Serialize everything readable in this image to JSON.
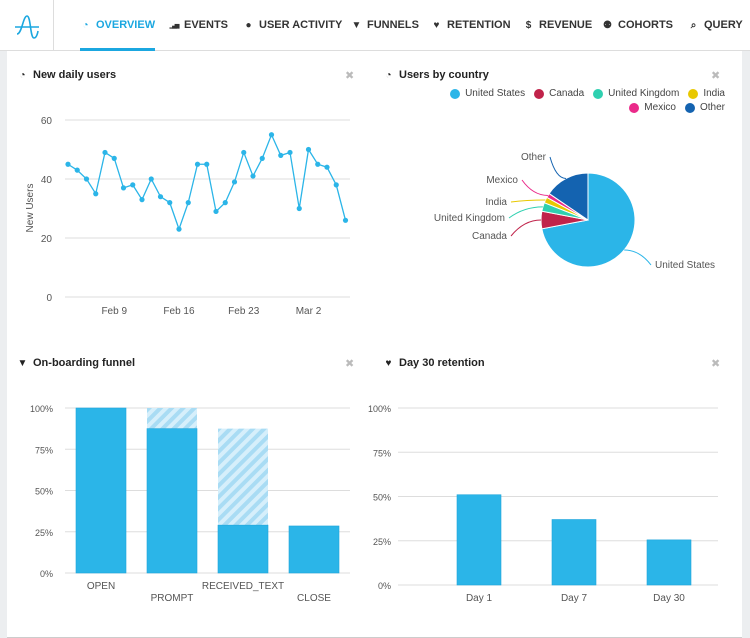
{
  "nav": {
    "items": [
      {
        "label": "OVERVIEW",
        "icon": "dashboard-icon",
        "active": true
      },
      {
        "label": "EVENTS",
        "icon": "signal-bars-icon"
      },
      {
        "label": "USER ACTIVITY",
        "icon": "user-icon"
      },
      {
        "label": "FUNNELS",
        "icon": "filter-icon"
      },
      {
        "label": "RETENTION",
        "icon": "heart-icon"
      },
      {
        "label": "REVENUE",
        "icon": "dollar-icon"
      },
      {
        "label": "COHORTS",
        "icon": "users-icon"
      },
      {
        "label": "QUERY",
        "icon": "search-icon"
      }
    ]
  },
  "accent": "#1ba7e0",
  "panels": {
    "daily": {
      "title": "New daily users"
    },
    "country": {
      "title": "Users by country"
    },
    "funnel": {
      "title": "On-boarding funnel"
    },
    "retention": {
      "title": "Day 30 retention"
    }
  },
  "chart_data": [
    {
      "type": "line",
      "title": "New daily users",
      "ylabel": "New Users",
      "ylim": [
        0,
        60
      ],
      "yticks": [
        "0",
        "20",
        "40",
        "60"
      ],
      "x_start": "Feb 4",
      "x_end": "Mar 6",
      "xticks": [
        {
          "label": "Feb 9",
          "index": 5
        },
        {
          "label": "Feb 16",
          "index": 12
        },
        {
          "label": "Feb 23",
          "index": 19
        },
        {
          "label": "Mar 2",
          "index": 26
        }
      ],
      "values": [
        45,
        43,
        40,
        35,
        49,
        47,
        37,
        38,
        33,
        40,
        34,
        32,
        23,
        32,
        45,
        45,
        29,
        32,
        39,
        49,
        41,
        47,
        55,
        48,
        49,
        30,
        50,
        45,
        44,
        38,
        26
      ],
      "color": "#2bb5e8",
      "grid": true
    },
    {
      "type": "pie",
      "title": "Users by country",
      "legend": "top-right",
      "slices": [
        {
          "name": "United States",
          "value": 72,
          "color": "#2bb5e8"
        },
        {
          "name": "Canada",
          "value": 6,
          "color": "#c0234a"
        },
        {
          "name": "United Kingdom",
          "value": 3,
          "color": "#2fd0b0"
        },
        {
          "name": "India",
          "value": 2,
          "color": "#e8c800"
        },
        {
          "name": "Mexico",
          "value": 1.5,
          "color": "#ea2a8a"
        },
        {
          "name": "Other",
          "value": 15.5,
          "color": "#1463b0"
        }
      ]
    },
    {
      "type": "bar",
      "title": "On-boarding funnel",
      "categories": [
        "OPEN",
        "PROMPT",
        "RECEIVED_TEXT",
        "CLOSE"
      ],
      "values": [
        100,
        87.5,
        29,
        28.5
      ],
      "dropoff_from": [
        null,
        100,
        87.5,
        null
      ],
      "ylim": [
        0,
        100
      ],
      "yticks": [
        "0%",
        "25%",
        "50%",
        "75%",
        "100%"
      ],
      "grid": true
    },
    {
      "type": "bar",
      "title": "Day 30 retention",
      "categories": [
        "Day 1",
        "Day 7",
        "Day 30"
      ],
      "values": [
        51,
        37,
        25.5
      ],
      "ylim": [
        0,
        100
      ],
      "yticks": [
        "0%",
        "25%",
        "50%",
        "75%",
        "100%"
      ],
      "grid": true
    }
  ]
}
